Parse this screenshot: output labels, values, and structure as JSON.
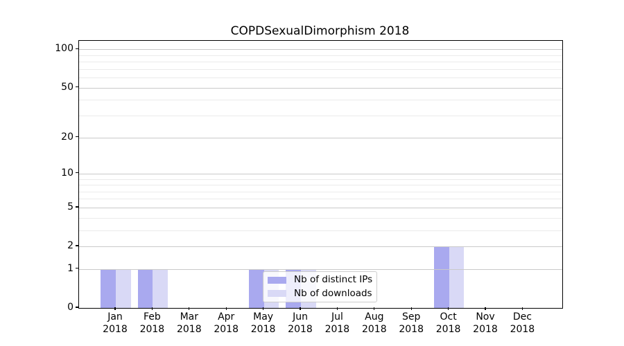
{
  "chart_data": {
    "type": "bar",
    "title": "COPDSexualDimorphism 2018",
    "year_label": "2018",
    "categories": [
      "Jan",
      "Feb",
      "Mar",
      "Apr",
      "May",
      "Jun",
      "Jul",
      "Aug",
      "Sep",
      "Oct",
      "Nov",
      "Dec"
    ],
    "series": [
      {
        "name": "Nb of distinct IPs",
        "color": "#a9a9ef",
        "values": [
          1,
          1,
          0,
          0,
          1,
          1,
          0,
          0,
          0,
          2,
          0,
          0
        ]
      },
      {
        "name": "Nb of downloads",
        "color": "#d9d9f6",
        "values": [
          1,
          1,
          0,
          0,
          1,
          1,
          0,
          0,
          0,
          2,
          0,
          0
        ]
      }
    ],
    "y_axis": {
      "scale": "log1p",
      "ticks": [
        0,
        1,
        2,
        5,
        10,
        20,
        50,
        100
      ],
      "minor_gridlines": [
        3,
        4,
        6,
        7,
        8,
        9,
        30,
        40,
        60,
        70,
        80,
        90
      ],
      "ylim": [
        0,
        118
      ]
    },
    "x_axis": {
      "tick_label_lines": [
        "month",
        "year"
      ]
    },
    "legend": {
      "position": "lower center",
      "entries": [
        "Nb of distinct IPs",
        "Nb of downloads"
      ]
    },
    "grid": {
      "major_on": true,
      "minor_on": true
    },
    "colors": {
      "bar_distinct_ips": "#a9a9ef",
      "bar_downloads": "#d9d9f6",
      "grid_major": "#c9c9c9",
      "grid_minor": "#ebebeb",
      "spine": "#000000",
      "text": "#000000",
      "background": "#ffffff"
    }
  }
}
